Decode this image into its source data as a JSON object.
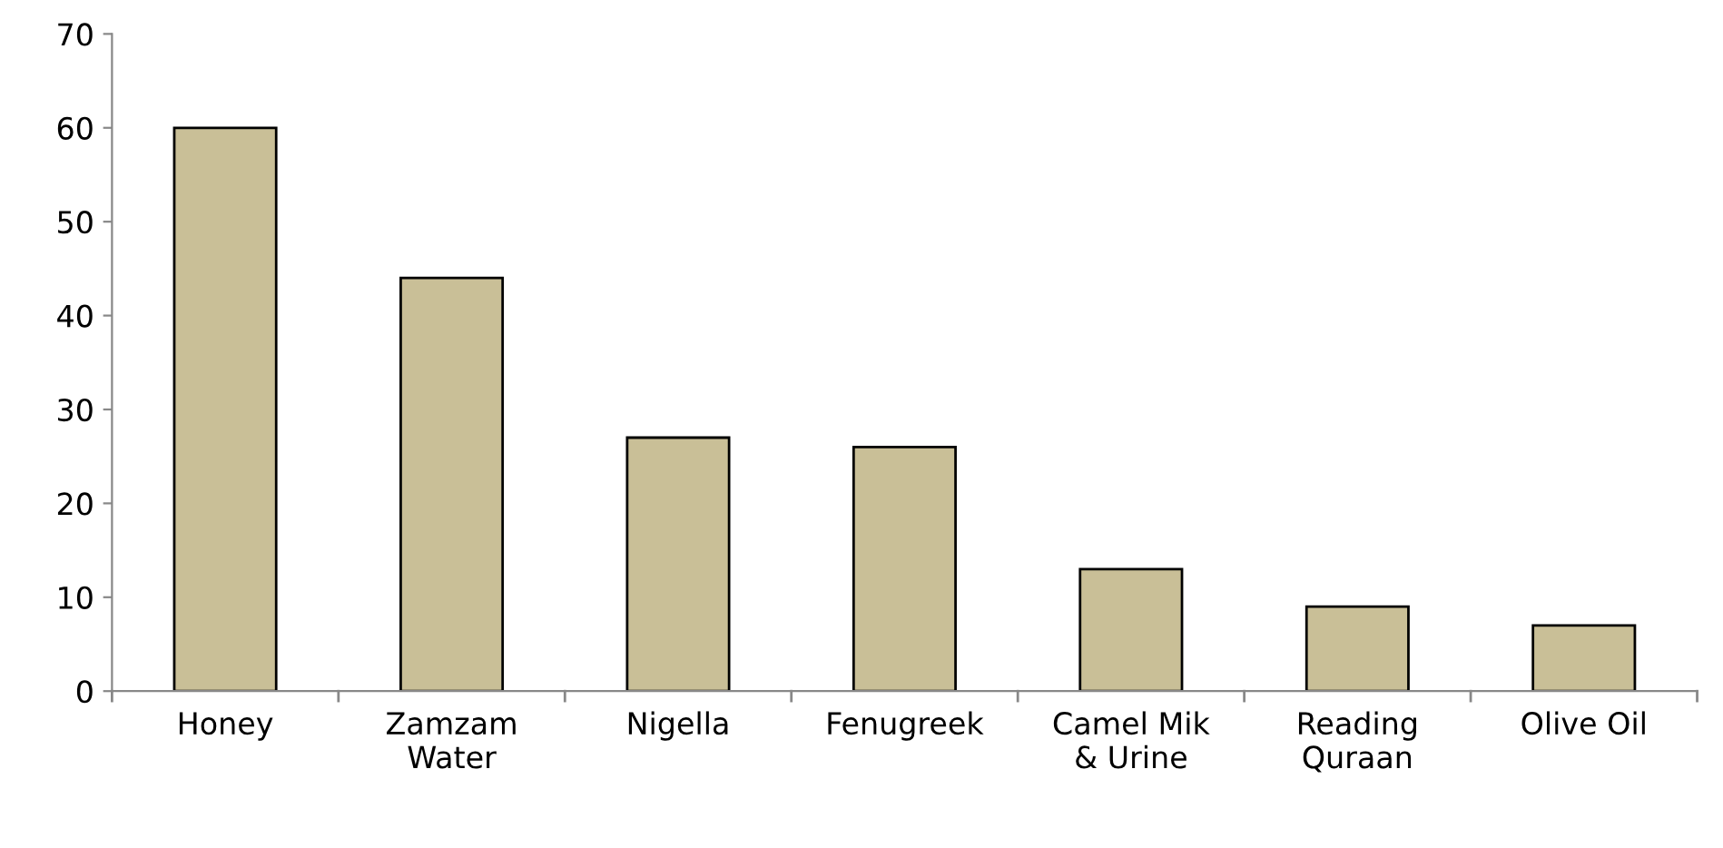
{
  "chart_data": {
    "type": "bar",
    "categories": [
      "Honey",
      "Zamzam\nWater",
      "Nigella",
      "Fenugreek",
      "Camel Mik\n& Urine",
      "Reading\nQuraan",
      "Olive Oil"
    ],
    "values": [
      60,
      44,
      27,
      26,
      13,
      9,
      7
    ],
    "color": "#c9bf97",
    "ylim": [
      0,
      70
    ],
    "yticks": [
      0,
      10,
      20,
      30,
      40,
      50,
      60,
      70
    ],
    "grid": false,
    "legend": false
  }
}
